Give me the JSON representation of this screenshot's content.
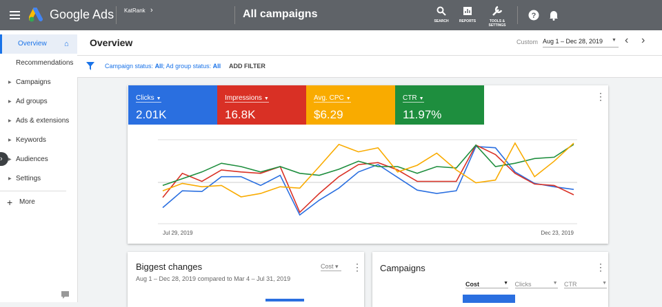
{
  "header": {
    "product": "Google Ads",
    "account": "KatRank",
    "title": "All campaigns",
    "tools": [
      "SEARCH",
      "REPORTS",
      "TOOLS & SETTINGS"
    ]
  },
  "sidebar": {
    "items": [
      "Overview",
      "Recommendations",
      "Campaigns",
      "Ad groups",
      "Ads & extensions",
      "Keywords",
      "Audiences",
      "Settings"
    ],
    "more": "More"
  },
  "page": {
    "title": "Overview",
    "range_label": "Custom",
    "range": "Aug 1 – Dec 28, 2019"
  },
  "filter": {
    "campaign_label": "Campaign status:",
    "campaign_value": "All",
    "adgroup_label": "; Ad group status:",
    "adgroup_value": "All",
    "add": "ADD FILTER"
  },
  "metrics": [
    {
      "name": "Clicks",
      "value": "2.01K",
      "color": "#2a6fe0"
    },
    {
      "name": "Impressions",
      "value": "16.8K",
      "color": "#d93025"
    },
    {
      "name": "Avg. CPC",
      "value": "$6.29",
      "color": "#f9ab00"
    },
    {
      "name": "CTR",
      "value": "11.97%",
      "color": "#1e8e3e"
    }
  ],
  "chart_data": {
    "type": "line",
    "categories": [
      "Jul 29, 2019",
      null,
      null,
      null,
      null,
      null,
      null,
      null,
      null,
      null,
      null,
      null,
      null,
      null,
      null,
      null,
      null,
      null,
      null,
      null,
      null,
      "Dec 23, 2019"
    ],
    "ylim": [
      0,
      125
    ],
    "series": [
      {
        "color": "#2a6fe0",
        "values": [
          24,
          49,
          48,
          70,
          70,
          57,
          72,
          13,
          35,
          53,
          77,
          88,
          69,
          50,
          45,
          49,
          115,
          113,
          77,
          60,
          55,
          51
        ]
      },
      {
        "color": "#d93025",
        "values": [
          39,
          75,
          63,
          80,
          77,
          75,
          85,
          17,
          45,
          70,
          88,
          91,
          80,
          63,
          63,
          63,
          117,
          103,
          75,
          59,
          57,
          43
        ]
      },
      {
        "color": "#1e8e3e",
        "values": [
          57,
          67,
          77,
          90,
          85,
          77,
          85,
          75,
          72,
          81,
          93,
          85,
          85,
          75,
          85,
          83,
          117,
          85,
          90,
          97,
          99,
          118
        ]
      },
      {
        "color": "#f9ab00",
        "values": [
          49,
          60,
          55,
          57,
          40,
          45,
          55,
          53,
          85,
          118,
          107,
          113,
          77,
          87,
          105,
          80,
          61,
          65,
          120,
          70,
          93,
          120
        ]
      }
    ]
  },
  "changes": {
    "title": "Biggest changes",
    "metric": "Cost",
    "subtitle": "Aug 1 – Dec 28, 2019 compared to Mar 4 – Jul 31, 2019"
  },
  "campaigns": {
    "title": "Campaigns",
    "columns": [
      "Cost",
      "Clicks",
      "CTR"
    ]
  }
}
